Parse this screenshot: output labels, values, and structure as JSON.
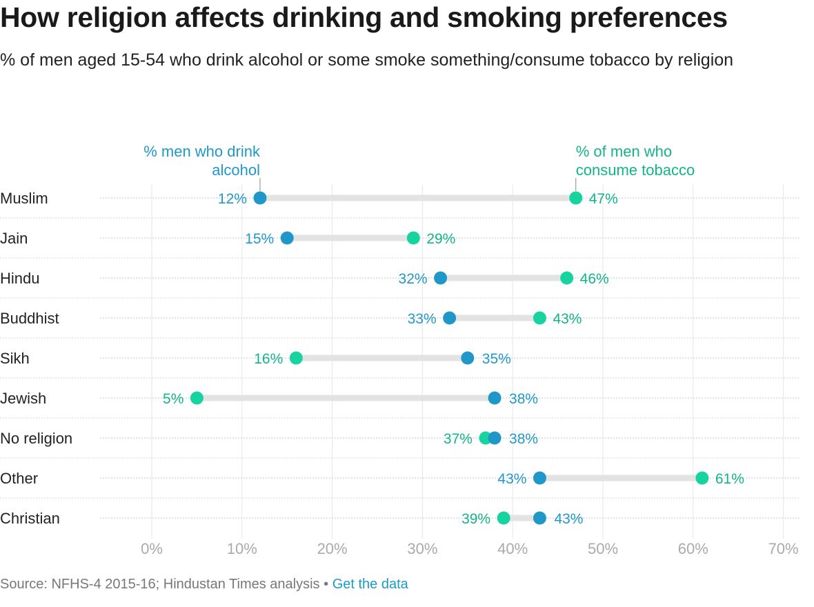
{
  "title": "How religion affects drinking and smoking preferences",
  "subtitle": "% of men aged 15-54 who drink alcohol or some smoke something/consume tobacco by religion",
  "source": {
    "text": "Source: NFHS-4 2015-16; Hindustan Times analysis",
    "separator": "•",
    "link": "Get the data"
  },
  "colors": {
    "alcohol": "#1f98c9",
    "tobacco": "#16d3a0",
    "tobacco_text": "#13b488",
    "connector": "#e3e3e3",
    "grid": "#d0d0d0"
  },
  "chart_data": {
    "type": "dot",
    "title": "How religion affects drinking and smoking preferences",
    "subtitle": "% of men aged 15-54 who drink alcohol or some smoke something/consume tobacco by religion",
    "categories": [
      "Muslim",
      "Jain",
      "Hindu",
      "Buddhist",
      "Sikh",
      "Jewish",
      "No religion",
      "Other",
      "Christian"
    ],
    "series": [
      {
        "name": "% men who drink alcohol",
        "values": [
          12,
          15,
          32,
          33,
          35,
          38,
          38,
          43,
          43
        ]
      },
      {
        "name": "% of men who consume tobacco",
        "values": [
          47,
          29,
          46,
          43,
          16,
          5,
          37,
          61,
          39
        ]
      }
    ],
    "legend": {
      "alcohol": [
        "% men who drink",
        "alcohol"
      ],
      "tobacco": [
        "% of men who",
        "consume tobacco"
      ]
    },
    "xticks": [
      0,
      10,
      20,
      30,
      40,
      50,
      60,
      70
    ],
    "tick_labels": [
      "0%",
      "10%",
      "20%",
      "30%",
      "40%",
      "50%",
      "60%",
      "70%"
    ],
    "xlim": [
      -5.5,
      72
    ],
    "grid": true
  }
}
